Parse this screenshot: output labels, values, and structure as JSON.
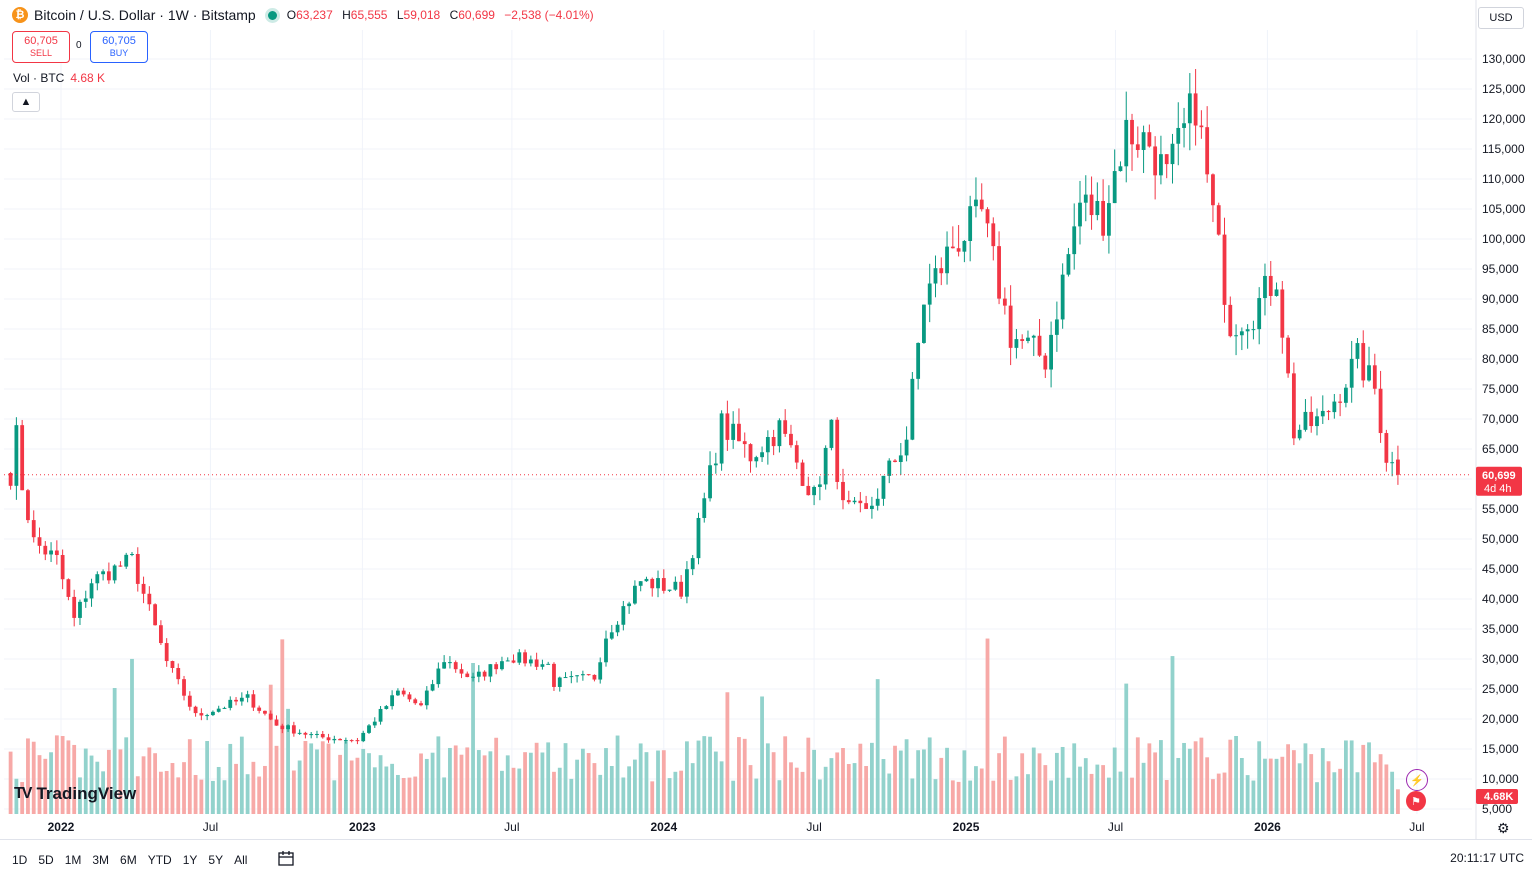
{
  "header": {
    "coin_symbol": "₿",
    "title": "Bitcoin / U.S. Dollar · 1W · Bitstamp",
    "open_label": "O",
    "open": "63,237",
    "high_label": "H",
    "high": "65,555",
    "low_label": "L",
    "low": "59,018",
    "close_label": "C",
    "close": "60,699",
    "change": "−2,538 (−4.01%)"
  },
  "trade": {
    "sell_price": "60,705",
    "sell_label": "SELL",
    "spread": "0",
    "buy_price": "60,705",
    "buy_label": "BUY"
  },
  "volume": {
    "label": "Vol · BTC",
    "value": "4.68 K"
  },
  "currency": "USD",
  "timeframes": [
    "1D",
    "5D",
    "1M",
    "3M",
    "6M",
    "YTD",
    "1Y",
    "5Y",
    "All"
  ],
  "clock": "20:11:17 UTC",
  "logo": {
    "mark": "TV",
    "text": "TradingView"
  },
  "price_tag": {
    "value": "60,699",
    "countdown": "4d 4h"
  },
  "volume_tag": "4.68K",
  "colors": {
    "up": "#089981",
    "down": "#f23645",
    "up_vol": "#92d2cc",
    "down_vol": "#f7a9a7",
    "grid": "#f0f3fa"
  },
  "icons": [
    "bitcoin-icon",
    "live-dot-icon",
    "chevron-up-icon",
    "calendar-icon",
    "settings-icon",
    "flash-icon",
    "flag-icon"
  ],
  "chart_data": {
    "type": "candlestick",
    "interval": "1W",
    "symbol": "Bitcoin / U.S. Dollar",
    "price_axis": {
      "ticks": [
        130000,
        125000,
        120000,
        115000,
        110000,
        105000,
        100000,
        95000,
        90000,
        85000,
        80000,
        75000,
        70000,
        65000,
        60000,
        55000,
        50000,
        45000,
        40000,
        35000,
        30000,
        25000,
        20000,
        15000,
        10000,
        5000
      ],
      "tick_labels": [
        "130,000",
        "125,000",
        "120,000",
        "115,000",
        "110,000",
        "105,000",
        "100,000",
        "95,000",
        "90,000",
        "85,000",
        "80,000",
        "75,000",
        "70,000",
        "65,000",
        "",
        "55,000",
        "50,000",
        "45,000",
        "40,000",
        "35,000",
        "30,000",
        "25,000",
        "20,000",
        "15,000",
        "10,000",
        "5,000"
      ],
      "range": [
        5000,
        130000
      ]
    },
    "time_axis": {
      "labels": [
        "2022",
        "Jul",
        "2023",
        "Jul",
        "2024",
        "Jul",
        "2025",
        "Jul",
        "2026",
        "Jul"
      ],
      "positions": [
        "2022-01-01",
        "2022-07-01",
        "2023-01-01",
        "2023-07-01",
        "2024-01-01",
        "2024-07-01",
        "2025-01-01",
        "2025-07-01",
        "2026-01-01",
        "2026-07-01"
      ],
      "range": [
        "2021-10-24",
        "2026-07-12"
      ]
    },
    "anchors": [
      [
        "2021-11-01",
        61000
      ],
      [
        "2021-11-08",
        67000
      ],
      [
        "2021-11-15",
        59000
      ],
      [
        "2021-11-29",
        49500
      ],
      [
        "2021-12-27",
        46500
      ],
      [
        "2022-01-17",
        36500
      ],
      [
        "2022-02-07",
        43000
      ],
      [
        "2022-03-28",
        46500
      ],
      [
        "2022-05-09",
        29500
      ],
      [
        "2022-06-13",
        20500
      ],
      [
        "2022-08-15",
        23500
      ],
      [
        "2022-09-19",
        19000
      ],
      [
        "2022-11-07",
        17000
      ],
      [
        "2022-12-26",
        16500
      ],
      [
        "2023-02-13",
        24500
      ],
      [
        "2023-03-13",
        22000
      ],
      [
        "2023-04-10",
        30000
      ],
      [
        "2023-05-15",
        26500
      ],
      [
        "2023-06-26",
        30500
      ],
      [
        "2023-08-14",
        29000
      ],
      [
        "2023-08-21",
        26000
      ],
      [
        "2023-10-09",
        27000
      ],
      [
        "2023-10-23",
        34000
      ],
      [
        "2023-12-04",
        43000
      ],
      [
        "2024-01-22",
        41500
      ],
      [
        "2024-02-12",
        52000
      ],
      [
        "2024-03-11",
        69000
      ],
      [
        "2024-04-15",
        64000
      ],
      [
        "2024-05-20",
        68500
      ],
      [
        "2024-07-01",
        57000
      ],
      [
        "2024-07-22",
        68000
      ],
      [
        "2024-08-05",
        55000
      ],
      [
        "2024-09-02",
        54000
      ],
      [
        "2024-10-21",
        67000
      ],
      [
        "2024-11-11",
        90000
      ],
      [
        "2024-12-16",
        99000
      ],
      [
        "2025-01-20",
        104000
      ],
      [
        "2025-02-24",
        84000
      ],
      [
        "2025-04-07",
        80000
      ],
      [
        "2025-05-19",
        106000
      ],
      [
        "2025-06-16",
        104000
      ],
      [
        "2025-07-14",
        118000
      ],
      [
        "2025-08-11",
        116000
      ],
      [
        "2025-09-01",
        110000
      ],
      [
        "2025-10-06",
        123000
      ],
      [
        "2025-10-20",
        110000
      ],
      [
        "2025-11-17",
        86000
      ],
      [
        "2025-12-15",
        88000
      ],
      [
        "2026-01-12",
        94000
      ],
      [
        "2026-02-02",
        68000
      ],
      [
        "2026-03-09",
        70000
      ],
      [
        "2026-04-20",
        80000
      ],
      [
        "2026-05-11",
        75000
      ],
      [
        "2026-05-25",
        64000
      ],
      [
        "2026-06-08",
        60699
      ]
    ],
    "last_candle": {
      "open": 63237,
      "high": 65555,
      "low": 59018,
      "close": 60699,
      "change": -2538,
      "change_pct": -4.01
    },
    "current_price": 60699,
    "volume_scale": {
      "range": [
        0,
        36000
      ],
      "last": 4680
    }
  }
}
